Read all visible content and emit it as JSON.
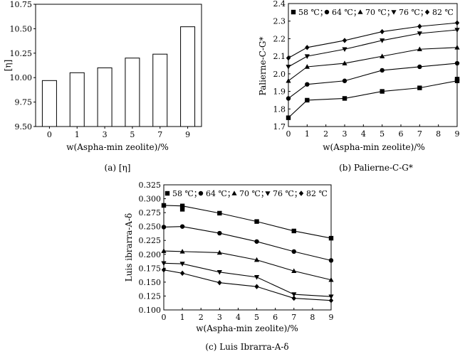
{
  "chart_data": [
    {
      "type": "bar",
      "caption": "(a) [η]",
      "ylabel": "[η]",
      "xlabel": "w(Aspha-min zeolite)/%",
      "categories": [
        "0",
        "1",
        "3",
        "5",
        "7",
        "9"
      ],
      "values": [
        9.97,
        10.05,
        10.1,
        10.2,
        10.24,
        10.52
      ],
      "ylim": [
        9.5,
        10.75
      ],
      "yticks": [
        "9.50",
        "9.75",
        "10.00",
        "10.25",
        "10.50",
        "10.75"
      ]
    },
    {
      "type": "line",
      "caption": "(b) Palierne-C-G*",
      "ylabel": "Palierne-C-G*",
      "xlabel": "w(Aspha-min zeolite)/%",
      "xlim": [
        0,
        9
      ],
      "ylim": [
        1.7,
        2.4
      ],
      "xticks": [
        "0",
        "1",
        "2",
        "3",
        "4",
        "5",
        "6",
        "7",
        "8",
        "9"
      ],
      "yticks": [
        "1.7",
        "1.8",
        "1.9",
        "2.0",
        "2.1",
        "2.2",
        "2.3",
        "2.4"
      ],
      "x": [
        0,
        1,
        3,
        5,
        7,
        9
      ],
      "legend_position": "top",
      "series": [
        {
          "name": "58 ℃",
          "marker": "square",
          "values": [
            1.75,
            1.85,
            1.86,
            1.9,
            1.92,
            1.96
          ]
        },
        {
          "name": "64 ℃",
          "marker": "circle",
          "values": [
            1.86,
            1.94,
            1.96,
            2.02,
            2.04,
            2.06
          ]
        },
        {
          "name": "70 ℃",
          "marker": "triangle-up",
          "values": [
            1.96,
            2.04,
            2.06,
            2.1,
            2.14,
            2.15
          ]
        },
        {
          "name": "76 ℃",
          "marker": "triangle-down",
          "values": [
            2.04,
            2.1,
            2.14,
            2.19,
            2.23,
            2.25
          ]
        },
        {
          "name": "82 ℃",
          "marker": "diamond",
          "values": [
            2.09,
            2.15,
            2.19,
            2.24,
            2.27,
            2.29
          ]
        }
      ],
      "extra_points": [
        {
          "series": "58 ℃",
          "x": 9,
          "y": 1.97
        }
      ]
    },
    {
      "type": "line",
      "caption": "(c) Luis Ibrarra-A-δ",
      "ylabel": "Luis ibrarra-A-δ",
      "xlabel": "w(Aspha-min zeolite)/%",
      "xlim": [
        0,
        9
      ],
      "ylim": [
        0.1,
        0.325
      ],
      "xticks": [
        "0",
        "1",
        "2",
        "3",
        "4",
        "5",
        "6",
        "7",
        "8",
        "9"
      ],
      "yticks": [
        "0.100",
        "0.125",
        "0.150",
        "0.175",
        "0.200",
        "0.225",
        "0.250",
        "0.275",
        "0.300",
        "0.325"
      ],
      "x": [
        0,
        1,
        3,
        5,
        7,
        9
      ],
      "legend_position": "top",
      "series": [
        {
          "name": "58 ℃",
          "marker": "square",
          "values": [
            0.288,
            0.287,
            0.274,
            0.259,
            0.242,
            0.229
          ]
        },
        {
          "name": "64 ℃",
          "marker": "circle",
          "values": [
            0.249,
            0.25,
            0.238,
            0.223,
            0.205,
            0.189
          ]
        },
        {
          "name": "70 ℃",
          "marker": "triangle-up",
          "values": [
            0.206,
            0.205,
            0.203,
            0.19,
            0.17,
            0.154
          ]
        },
        {
          "name": "76 ℃",
          "marker": "triangle-down",
          "values": [
            0.184,
            0.183,
            0.168,
            0.159,
            0.128,
            0.124
          ]
        },
        {
          "name": "82 ℃",
          "marker": "diamond",
          "values": [
            0.172,
            0.166,
            0.149,
            0.142,
            0.121,
            0.117
          ]
        }
      ],
      "extra_points": [
        {
          "series": "58 ℃",
          "x": 1,
          "y": 0.281
        }
      ]
    }
  ]
}
